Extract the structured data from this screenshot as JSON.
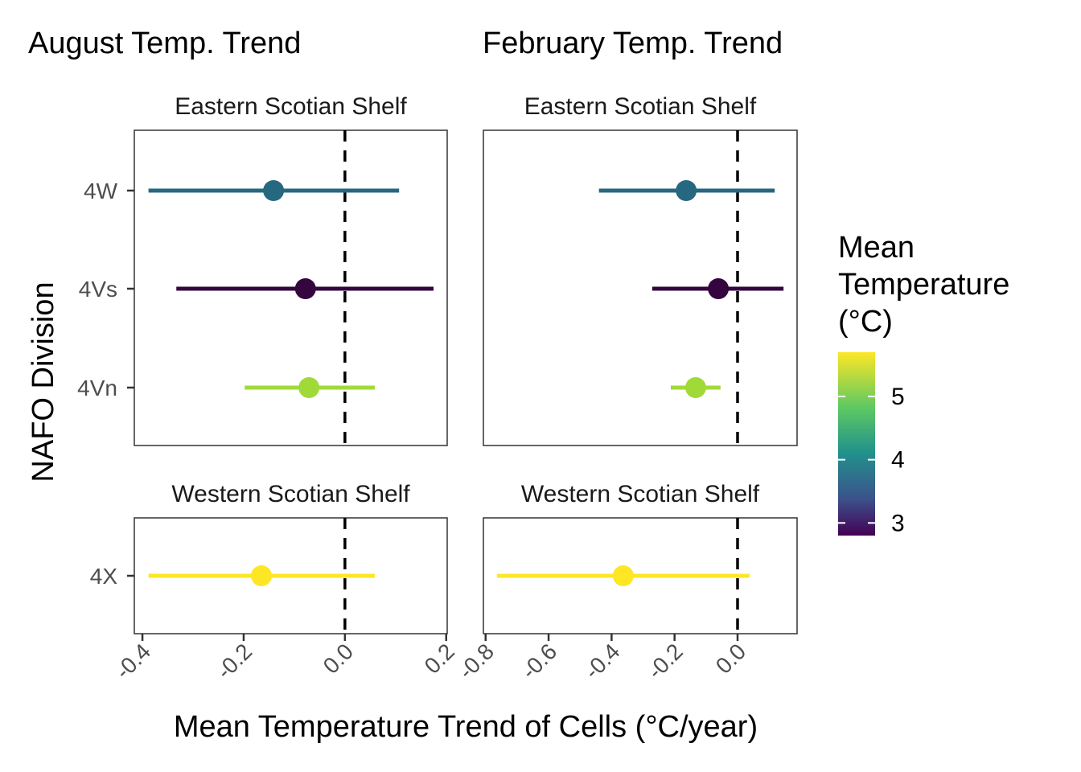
{
  "chart_data": {
    "type": "errorbar-dot",
    "xlabel": "Mean Temperature Trend of Cells (°C/year)",
    "ylabel": "NAFO Division",
    "legend": {
      "title": [
        "Mean",
        "Temperature",
        "(°C)"
      ],
      "ticks": [
        3,
        4,
        5
      ],
      "range": [
        2.8,
        5.7
      ],
      "colormap": "viridis",
      "placement": "right"
    },
    "facet_rows": [
      "Eastern Scotian Shelf",
      "Western Scotian Shelf"
    ],
    "row_categories": [
      [
        "4W",
        "4Vs",
        "4Vn"
      ],
      [
        "4X"
      ]
    ],
    "reference_line": 0,
    "panels": [
      {
        "title": "August Temp. Trend",
        "xlim": [
          -0.416,
          0.202
        ],
        "xticks": [
          -0.4,
          -0.2,
          0.0,
          0.2
        ],
        "xtick_labels": [
          "-0.4",
          "-0.2",
          "0.0",
          "0.2"
        ],
        "points": [
          {
            "division": "4W",
            "region": "Eastern Scotian Shelf",
            "mean": -0.141,
            "low": -0.388,
            "high": 0.107,
            "temp": 4.2,
            "color": "#26687f"
          },
          {
            "division": "4Vs",
            "region": "Eastern Scotian Shelf",
            "mean": -0.078,
            "low": -0.333,
            "high": 0.175,
            "temp": 2.8,
            "color": "#35053f"
          },
          {
            "division": "4Vn",
            "region": "Eastern Scotian Shelf",
            "mean": -0.071,
            "low": -0.198,
            "high": 0.059,
            "temp": 5.3,
            "color": "#a0da39"
          },
          {
            "division": "4X",
            "region": "Western Scotian Shelf",
            "mean": -0.165,
            "low": -0.388,
            "high": 0.059,
            "temp": 5.7,
            "color": "#fde725"
          }
        ]
      },
      {
        "title": "February Temp. Trend",
        "xlim": [
          -0.807,
          0.189
        ],
        "xticks": [
          -0.8,
          -0.6,
          -0.4,
          -0.2,
          0.0
        ],
        "xtick_labels": [
          "-0.8",
          "-0.6",
          "-0.4",
          "-0.2",
          "0.0"
        ],
        "points": [
          {
            "division": "4W",
            "region": "Eastern Scotian Shelf",
            "mean": -0.163,
            "low": -0.44,
            "high": 0.118,
            "temp": 4.2,
            "color": "#26687f"
          },
          {
            "division": "4Vs",
            "region": "Eastern Scotian Shelf",
            "mean": -0.061,
            "low": -0.271,
            "high": 0.146,
            "temp": 2.8,
            "color": "#35053f"
          },
          {
            "division": "4Vn",
            "region": "Eastern Scotian Shelf",
            "mean": -0.133,
            "low": -0.212,
            "high": -0.054,
            "temp": 5.3,
            "color": "#a0da39"
          },
          {
            "division": "4X",
            "region": "Western Scotian Shelf",
            "mean": -0.363,
            "low": -0.764,
            "high": 0.038,
            "temp": 5.7,
            "color": "#fde725"
          }
        ]
      }
    ]
  }
}
